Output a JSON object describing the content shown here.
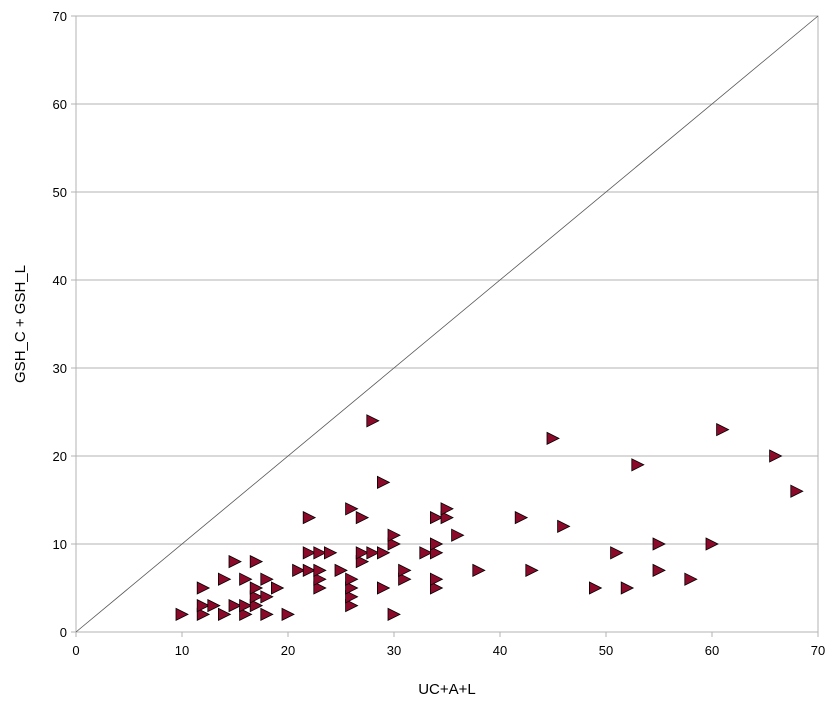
{
  "chart_data": {
    "type": "scatter",
    "xlabel": "UC+A+L",
    "ylabel": "GSH_C + GSH_L",
    "xlim": [
      0,
      70
    ],
    "ylim": [
      0,
      70
    ],
    "xticks": [
      0,
      10,
      20,
      30,
      40,
      50,
      60,
      70
    ],
    "yticks": [
      0,
      10,
      20,
      30,
      40,
      50,
      60,
      70
    ],
    "grid": "horizontal",
    "reference_line": {
      "from": [
        0,
        0
      ],
      "to": [
        70,
        70
      ]
    },
    "marker": "triangle-right",
    "marker_color": "#8b0a2a",
    "series": [
      {
        "points": [
          [
            10,
            2
          ],
          [
            12,
            2
          ],
          [
            12,
            3
          ],
          [
            12,
            5
          ],
          [
            13,
            3
          ],
          [
            14,
            2
          ],
          [
            14,
            6
          ],
          [
            15,
            3
          ],
          [
            15,
            8
          ],
          [
            16,
            2
          ],
          [
            16,
            3
          ],
          [
            16,
            6
          ],
          [
            17,
            3
          ],
          [
            17,
            4
          ],
          [
            17,
            5
          ],
          [
            17,
            8
          ],
          [
            18,
            2
          ],
          [
            18,
            4
          ],
          [
            18,
            6
          ],
          [
            19,
            5
          ],
          [
            20,
            2
          ],
          [
            21,
            7
          ],
          [
            22,
            7
          ],
          [
            22,
            9
          ],
          [
            22,
            13
          ],
          [
            23,
            5
          ],
          [
            23,
            6
          ],
          [
            23,
            7
          ],
          [
            23,
            9
          ],
          [
            24,
            9
          ],
          [
            25,
            7
          ],
          [
            26,
            3
          ],
          [
            26,
            4
          ],
          [
            26,
            5
          ],
          [
            26,
            6
          ],
          [
            26,
            14
          ],
          [
            27,
            8
          ],
          [
            27,
            9
          ],
          [
            27,
            13
          ],
          [
            28,
            9
          ],
          [
            28,
            24
          ],
          [
            29,
            5
          ],
          [
            29,
            9
          ],
          [
            29,
            17
          ],
          [
            30,
            2
          ],
          [
            30,
            10
          ],
          [
            30,
            11
          ],
          [
            31,
            6
          ],
          [
            31,
            7
          ],
          [
            33,
            9
          ],
          [
            34,
            5
          ],
          [
            34,
            6
          ],
          [
            34,
            9
          ],
          [
            34,
            10
          ],
          [
            34,
            13
          ],
          [
            35,
            13
          ],
          [
            35,
            14
          ],
          [
            36,
            11
          ],
          [
            38,
            7
          ],
          [
            42,
            13
          ],
          [
            43,
            7
          ],
          [
            45,
            22
          ],
          [
            46,
            12
          ],
          [
            49,
            5
          ],
          [
            51,
            9
          ],
          [
            52,
            5
          ],
          [
            53,
            19
          ],
          [
            55,
            7
          ],
          [
            55,
            10
          ],
          [
            58,
            6
          ],
          [
            60,
            10
          ],
          [
            61,
            23
          ],
          [
            66,
            20
          ],
          [
            68,
            16
          ]
        ]
      }
    ]
  }
}
